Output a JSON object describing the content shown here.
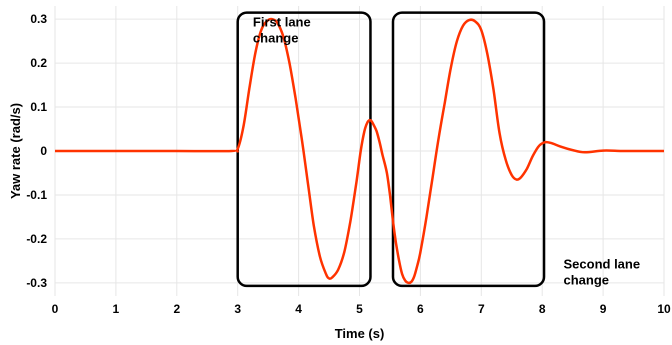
{
  "chart_data": {
    "type": "line",
    "title": "",
    "xlabel": "Time (s)",
    "ylabel": "Yaw rate (rad/s)",
    "xlim": [
      0,
      10
    ],
    "ylim": [
      -0.33,
      0.33
    ],
    "xticks": [
      0,
      1,
      2,
      3,
      4,
      5,
      6,
      7,
      8,
      9,
      10
    ],
    "yticks": [
      -0.3,
      -0.2,
      -0.1,
      0,
      0.1,
      0.2,
      0.3
    ],
    "xtick_labels": [
      "0",
      "1",
      "2",
      "3",
      "4",
      "5",
      "6",
      "7",
      "8",
      "9",
      "10"
    ],
    "ytick_labels": [
      "-0.3",
      "-0.2",
      "-0.1",
      "0",
      "0.1",
      "0.2",
      "0.3"
    ],
    "grid": true,
    "line_color": "#ff3300",
    "series": [
      {
        "x": [
          0,
          1,
          2,
          2.9,
          3.0,
          3.1,
          3.2,
          3.3,
          3.4,
          3.5,
          3.57,
          3.65,
          3.75,
          3.85,
          3.95,
          4.05,
          4.15,
          4.25,
          4.35,
          4.45,
          4.5,
          4.55,
          4.65,
          4.75,
          4.85,
          4.95,
          5.02,
          5.08,
          5.13,
          5.18,
          5.23,
          5.28,
          5.33,
          5.38,
          5.45,
          5.5,
          5.55,
          5.6,
          5.65,
          5.7,
          5.75,
          5.8,
          5.85,
          5.9,
          5.95,
          6.0,
          6.1,
          6.2,
          6.3,
          6.4,
          6.5,
          6.6,
          6.7,
          6.8,
          6.9,
          7.0,
          7.1,
          7.2,
          7.3,
          7.4,
          7.5,
          7.58,
          7.65,
          7.75,
          7.85,
          7.95,
          8.05,
          8.15,
          8.3,
          8.5,
          8.7,
          9.0,
          9.3,
          9.6,
          10
        ],
        "y": [
          0,
          0,
          0,
          0,
          0.005,
          0.06,
          0.15,
          0.23,
          0.28,
          0.298,
          0.3,
          0.292,
          0.26,
          0.2,
          0.12,
          0.03,
          -0.07,
          -0.17,
          -0.24,
          -0.28,
          -0.29,
          -0.288,
          -0.27,
          -0.23,
          -0.16,
          -0.07,
          0.0,
          0.045,
          0.065,
          0.07,
          0.06,
          0.045,
          0.02,
          -0.01,
          -0.05,
          -0.1,
          -0.16,
          -0.21,
          -0.25,
          -0.28,
          -0.295,
          -0.3,
          -0.298,
          -0.285,
          -0.26,
          -0.23,
          -0.15,
          -0.06,
          0.03,
          0.11,
          0.19,
          0.25,
          0.285,
          0.298,
          0.295,
          0.275,
          0.22,
          0.14,
          0.04,
          -0.02,
          -0.055,
          -0.065,
          -0.06,
          -0.04,
          -0.01,
          0.012,
          0.02,
          0.018,
          0.01,
          0.002,
          -0.003,
          0.001,
          0,
          0,
          0
        ]
      }
    ],
    "annotations": [
      {
        "text_lines": [
          "First lane",
          "change"
        ],
        "x": 3.25,
        "y": 0.315
      },
      {
        "text_lines": [
          "Second lane",
          "change"
        ],
        "x": 8.35,
        "y": -0.235
      }
    ],
    "boxes": [
      {
        "x0": 3.0,
        "x1": 5.18,
        "y0": -0.307,
        "y1": 0.315
      },
      {
        "x0": 5.55,
        "x1": 8.03,
        "y0": -0.307,
        "y1": 0.315
      }
    ]
  }
}
